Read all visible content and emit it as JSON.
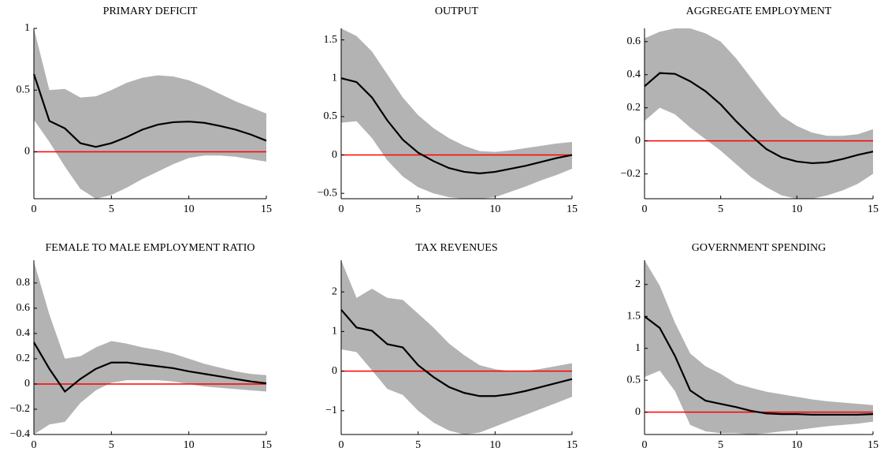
{
  "chart_data": [
    {
      "type": "line",
      "title": "PRIMARY DEFICIT",
      "x": [
        0,
        1,
        2,
        3,
        4,
        5,
        6,
        7,
        8,
        9,
        10,
        11,
        12,
        13,
        14,
        15
      ],
      "series": [
        {
          "color": "#000000",
          "values": [
            0.63,
            0.25,
            0.19,
            0.07,
            0.04,
            0.07,
            0.12,
            0.18,
            0.22,
            0.24,
            0.245,
            0.235,
            0.21,
            0.18,
            0.14,
            0.09
          ],
          "band_color": "#b3b3b3",
          "upper": [
            1.0,
            0.5,
            0.51,
            0.44,
            0.45,
            0.5,
            0.56,
            0.6,
            0.62,
            0.61,
            0.58,
            0.53,
            0.47,
            0.41,
            0.36,
            0.31
          ],
          "lower": [
            0.26,
            0.08,
            -0.12,
            -0.3,
            -0.38,
            -0.35,
            -0.29,
            -0.22,
            -0.16,
            -0.1,
            -0.05,
            -0.03,
            -0.03,
            -0.04,
            -0.06,
            -0.08
          ]
        }
      ],
      "hline": {
        "value": 0,
        "color": "#ff0000"
      },
      "xlim": [
        0,
        15
      ],
      "xticks": [
        0,
        5,
        10,
        15
      ],
      "ylim": [
        -0.38,
        1.0
      ],
      "yticks": [
        0,
        0.5,
        1
      ]
    },
    {
      "type": "line",
      "title": "OUTPUT",
      "x": [
        0,
        1,
        2,
        3,
        4,
        5,
        6,
        7,
        8,
        9,
        10,
        11,
        12,
        13,
        14,
        15
      ],
      "series": [
        {
          "color": "#000000",
          "values": [
            1.0,
            0.95,
            0.75,
            0.45,
            0.2,
            0.03,
            -0.08,
            -0.17,
            -0.22,
            -0.24,
            -0.22,
            -0.18,
            -0.14,
            -0.09,
            -0.04,
            0.0
          ],
          "band_color": "#b3b3b3",
          "upper": [
            1.65,
            1.55,
            1.35,
            1.05,
            0.75,
            0.52,
            0.35,
            0.22,
            0.12,
            0.05,
            0.04,
            0.06,
            0.09,
            0.12,
            0.15,
            0.17
          ],
          "lower": [
            0.42,
            0.44,
            0.22,
            -0.07,
            -0.28,
            -0.42,
            -0.5,
            -0.55,
            -0.57,
            -0.57,
            -0.55,
            -0.48,
            -0.41,
            -0.33,
            -0.26,
            -0.18
          ]
        }
      ],
      "hline": {
        "value": 0,
        "color": "#ff0000"
      },
      "xlim": [
        0,
        15
      ],
      "xticks": [
        0,
        5,
        10,
        15
      ],
      "ylim": [
        -0.57,
        1.65
      ],
      "yticks": [
        {
          "value": -0.5,
          "label": "−0.5"
        },
        0,
        0.5,
        1,
        1.5
      ]
    },
    {
      "type": "line",
      "title": "AGGREGATE EMPLOYMENT",
      "x": [
        0,
        1,
        2,
        3,
        4,
        5,
        6,
        7,
        8,
        9,
        10,
        11,
        12,
        13,
        14,
        15
      ],
      "series": [
        {
          "color": "#000000",
          "values": [
            0.33,
            0.41,
            0.405,
            0.36,
            0.3,
            0.22,
            0.12,
            0.03,
            -0.05,
            -0.1,
            -0.125,
            -0.135,
            -0.13,
            -0.11,
            -0.085,
            -0.065
          ],
          "band_color": "#b3b3b3",
          "upper": [
            0.62,
            0.66,
            0.68,
            0.68,
            0.65,
            0.6,
            0.5,
            0.38,
            0.26,
            0.15,
            0.09,
            0.05,
            0.03,
            0.03,
            0.04,
            0.07
          ],
          "lower": [
            0.12,
            0.2,
            0.16,
            0.08,
            0.01,
            -0.06,
            -0.14,
            -0.22,
            -0.28,
            -0.33,
            -0.35,
            -0.35,
            -0.33,
            -0.3,
            -0.26,
            -0.2
          ]
        }
      ],
      "hline": {
        "value": 0,
        "color": "#ff0000"
      },
      "xlim": [
        0,
        15
      ],
      "xticks": [
        0,
        5,
        10,
        15
      ],
      "ylim": [
        -0.35,
        0.68
      ],
      "yticks": [
        {
          "value": -0.2,
          "label": "−0.2"
        },
        0,
        0.2,
        0.4,
        0.6
      ]
    },
    {
      "type": "line",
      "title": "FEMALE TO MALE EMPLOYMENT RATIO",
      "x": [
        0,
        1,
        2,
        3,
        4,
        5,
        6,
        7,
        8,
        9,
        10,
        11,
        12,
        13,
        14,
        15
      ],
      "series": [
        {
          "color": "#000000",
          "values": [
            0.33,
            0.12,
            -0.06,
            0.04,
            0.12,
            0.17,
            0.17,
            0.155,
            0.14,
            0.125,
            0.1,
            0.08,
            0.06,
            0.04,
            0.02,
            0.005
          ],
          "band_color": "#b3b3b3",
          "upper": [
            0.97,
            0.55,
            0.2,
            0.22,
            0.29,
            0.34,
            0.32,
            0.29,
            0.27,
            0.24,
            0.2,
            0.16,
            0.13,
            0.1,
            0.08,
            0.07
          ],
          "lower": [
            -0.4,
            -0.32,
            -0.3,
            -0.15,
            -0.05,
            0.01,
            0.03,
            0.03,
            0.03,
            0.02,
            0.0,
            -0.02,
            -0.03,
            -0.04,
            -0.05,
            -0.06
          ]
        }
      ],
      "hline": {
        "value": 0,
        "color": "#ff0000"
      },
      "xlim": [
        0,
        15
      ],
      "xticks": [
        0,
        5,
        10,
        15
      ],
      "ylim": [
        -0.4,
        0.98
      ],
      "yticks": [
        {
          "value": -0.4,
          "label": "−0.4"
        },
        {
          "value": -0.2,
          "label": "−0.2"
        },
        0,
        0.2,
        0.4,
        0.6,
        0.8
      ]
    },
    {
      "type": "line",
      "title": "TAX REVENUES",
      "x": [
        0,
        1,
        2,
        3,
        4,
        5,
        6,
        7,
        8,
        9,
        10,
        11,
        12,
        13,
        14,
        15
      ],
      "series": [
        {
          "color": "#000000",
          "values": [
            1.55,
            1.1,
            1.02,
            0.68,
            0.6,
            0.15,
            -0.15,
            -0.4,
            -0.55,
            -0.63,
            -0.63,
            -0.58,
            -0.5,
            -0.4,
            -0.3,
            -0.2
          ],
          "band_color": "#b3b3b3",
          "upper": [
            2.8,
            1.85,
            2.08,
            1.85,
            1.8,
            1.45,
            1.1,
            0.7,
            0.4,
            0.15,
            0.05,
            0.0,
            0.0,
            0.06,
            0.13,
            0.2
          ],
          "lower": [
            0.55,
            0.48,
            0.02,
            -0.45,
            -0.6,
            -1.0,
            -1.3,
            -1.5,
            -1.6,
            -1.55,
            -1.4,
            -1.25,
            -1.1,
            -0.95,
            -0.8,
            -0.65
          ]
        }
      ],
      "hline": {
        "value": 0,
        "color": "#ff0000"
      },
      "xlim": [
        0,
        15
      ],
      "xticks": [
        0,
        5,
        10,
        15
      ],
      "ylim": [
        -1.6,
        2.8
      ],
      "yticks": [
        {
          "value": -1,
          "label": "−1"
        },
        0,
        1,
        2
      ]
    },
    {
      "type": "line",
      "title": "GOVERNMENT SPENDING",
      "x": [
        0,
        1,
        2,
        3,
        4,
        5,
        6,
        7,
        8,
        9,
        10,
        11,
        12,
        13,
        14,
        15
      ],
      "series": [
        {
          "color": "#000000",
          "values": [
            1.5,
            1.32,
            0.88,
            0.34,
            0.18,
            0.13,
            0.08,
            0.02,
            -0.02,
            -0.03,
            -0.03,
            -0.04,
            -0.04,
            -0.04,
            -0.04,
            -0.03
          ],
          "band_color": "#b3b3b3",
          "upper": [
            2.38,
            1.98,
            1.4,
            0.92,
            0.72,
            0.6,
            0.45,
            0.38,
            0.32,
            0.28,
            0.24,
            0.2,
            0.17,
            0.15,
            0.13,
            0.11
          ],
          "lower": [
            0.55,
            0.65,
            0.33,
            -0.2,
            -0.3,
            -0.33,
            -0.33,
            -0.35,
            -0.33,
            -0.3,
            -0.28,
            -0.25,
            -0.22,
            -0.2,
            -0.18,
            -0.15
          ]
        }
      ],
      "hline": {
        "value": 0,
        "color": "#ff0000"
      },
      "xlim": [
        0,
        15
      ],
      "xticks": [
        0,
        5,
        10,
        15
      ],
      "ylim": [
        -0.35,
        2.38
      ],
      "yticks": [
        0,
        0.5,
        1,
        1.5,
        2
      ]
    }
  ]
}
